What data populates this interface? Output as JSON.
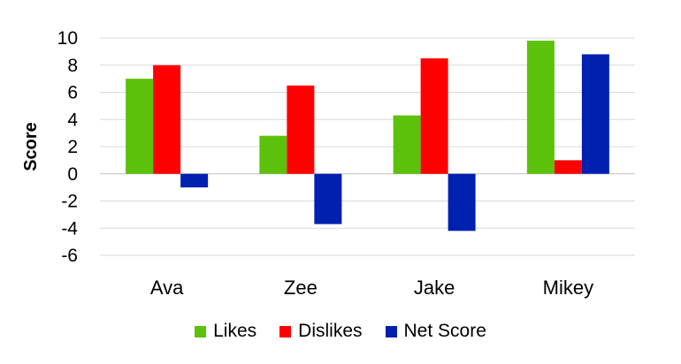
{
  "chart_data": {
    "type": "bar",
    "title": "",
    "xlabel": "",
    "ylabel": "Score",
    "categories": [
      "Ava",
      "Zee",
      "Jake",
      "Mikey"
    ],
    "series": [
      {
        "name": "Likes",
        "color": "#5CC10A",
        "values": [
          7.0,
          2.8,
          4.3,
          9.8
        ]
      },
      {
        "name": "Dislikes",
        "color": "#FF0000",
        "values": [
          8.0,
          6.5,
          8.5,
          1.0
        ]
      },
      {
        "name": "Net Score",
        "color": "#0020B0",
        "values": [
          -1.0,
          -3.7,
          -4.2,
          8.8
        ]
      }
    ],
    "ylim": [
      -6,
      10
    ],
    "yticks": [
      "10",
      "8",
      "6",
      "4",
      "2",
      "0",
      "-2",
      "-4",
      "-6"
    ],
    "grid": true,
    "legend_position": "bottom"
  }
}
